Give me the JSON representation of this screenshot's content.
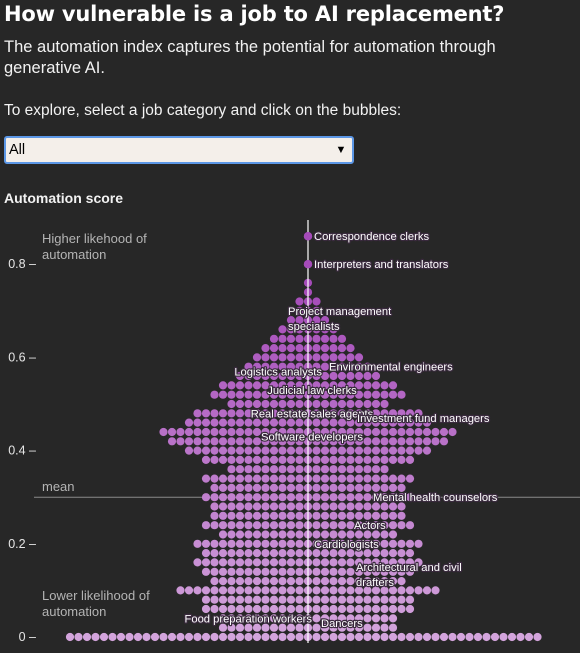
{
  "header": {
    "title": "How vulnerable is a job to AI replacement?",
    "subtitle": "The automation index captures the potential for automation through generative AI.",
    "prompt": "To explore, select a job category and click on the bubbles:"
  },
  "filter": {
    "selected": "All",
    "icon": "chevron-down-icon"
  },
  "chart_label": "Automation score",
  "colors": {
    "background": "#272727",
    "bubble_low": "#d3a4dc",
    "bubble_high": "#a54bb9",
    "highlight": "#a54bb9",
    "select_border": "#5c97e6"
  },
  "chart_data": {
    "type": "beeswarm",
    "ylabel": "Automation score",
    "ylim": [
      0,
      0.92
    ],
    "yticks": [
      {
        "value": 0,
        "label": "0 –"
      },
      {
        "value": 0.2,
        "label": "0.2 –"
      },
      {
        "value": 0.4,
        "label": "0.4 –"
      },
      {
        "value": 0.6,
        "label": "0.6 –"
      },
      {
        "value": 0.8,
        "label": "0.8 –"
      }
    ],
    "annotations": {
      "high": [
        "Higher likehood of",
        "automation"
      ],
      "low": [
        "Lower likelihood of",
        "automation"
      ],
      "mean_label": "mean"
    },
    "mean": 0.3,
    "bin_width": 0.02,
    "bins": [
      {
        "score": 0.0,
        "count": 56
      },
      {
        "score": 0.02,
        "count": 21
      },
      {
        "score": 0.04,
        "count": 21
      },
      {
        "score": 0.06,
        "count": 25
      },
      {
        "score": 0.08,
        "count": 25
      },
      {
        "score": 0.1,
        "count": 31
      },
      {
        "score": 0.12,
        "count": 23
      },
      {
        "score": 0.14,
        "count": 25
      },
      {
        "score": 0.16,
        "count": 27
      },
      {
        "score": 0.18,
        "count": 25
      },
      {
        "score": 0.2,
        "count": 27
      },
      {
        "score": 0.22,
        "count": 21
      },
      {
        "score": 0.24,
        "count": 25
      },
      {
        "score": 0.26,
        "count": 23
      },
      {
        "score": 0.28,
        "count": 23
      },
      {
        "score": 0.3,
        "count": 25
      },
      {
        "score": 0.32,
        "count": 23
      },
      {
        "score": 0.34,
        "count": 25
      },
      {
        "score": 0.36,
        "count": 19
      },
      {
        "score": 0.38,
        "count": 25
      },
      {
        "score": 0.4,
        "count": 29
      },
      {
        "score": 0.42,
        "count": 33
      },
      {
        "score": 0.44,
        "count": 35
      },
      {
        "score": 0.46,
        "count": 29
      },
      {
        "score": 0.48,
        "count": 27
      },
      {
        "score": 0.5,
        "count": 19
      },
      {
        "score": 0.52,
        "count": 23
      },
      {
        "score": 0.54,
        "count": 21
      },
      {
        "score": 0.56,
        "count": 17
      },
      {
        "score": 0.58,
        "count": 15
      },
      {
        "score": 0.6,
        "count": 13
      },
      {
        "score": 0.62,
        "count": 11
      },
      {
        "score": 0.64,
        "count": 9
      },
      {
        "score": 0.66,
        "count": 7
      },
      {
        "score": 0.68,
        "count": 5
      },
      {
        "score": 0.7,
        "count": 3
      },
      {
        "score": 0.72,
        "count": 3
      },
      {
        "score": 0.74,
        "count": 1
      },
      {
        "score": 0.76,
        "count": 1
      },
      {
        "score": 0.8,
        "count": 1
      },
      {
        "score": 0.86,
        "count": 1
      }
    ],
    "labeled_jobs": [
      {
        "name": "Correspondence clerks",
        "score": 0.86,
        "align": "left"
      },
      {
        "name": "Interpreters and translators",
        "score": 0.8,
        "align": "left"
      },
      {
        "name": [
          "Project management",
          "specialists"
        ],
        "score": 0.7,
        "align": "left"
      },
      {
        "name": "Environmental engineers",
        "score": 0.58,
        "align": "left"
      },
      {
        "name": "Logistics analysts",
        "score": 0.57,
        "align": "right"
      },
      {
        "name": "Judicial law clerks",
        "score": 0.53,
        "align": "center"
      },
      {
        "name": "Real estate sales agents",
        "score": 0.48,
        "align": "center"
      },
      {
        "name": "Investment fund managers",
        "score": 0.47,
        "align": "left"
      },
      {
        "name": "Software developers",
        "score": 0.43,
        "align": "center"
      },
      {
        "name": "Mental health counselors",
        "score": 0.3,
        "align": "left"
      },
      {
        "name": "Actors",
        "score": 0.24,
        "align": "left"
      },
      {
        "name": "Cardiologists",
        "score": 0.2,
        "align": "left"
      },
      {
        "name": [
          "Architectural and civil",
          "drafters"
        ],
        "score": 0.15,
        "align": "left"
      },
      {
        "name": "Food preparation workers",
        "score": 0.04,
        "align": "right"
      },
      {
        "name": "Dancers",
        "score": 0.03,
        "align": "left"
      }
    ]
  }
}
